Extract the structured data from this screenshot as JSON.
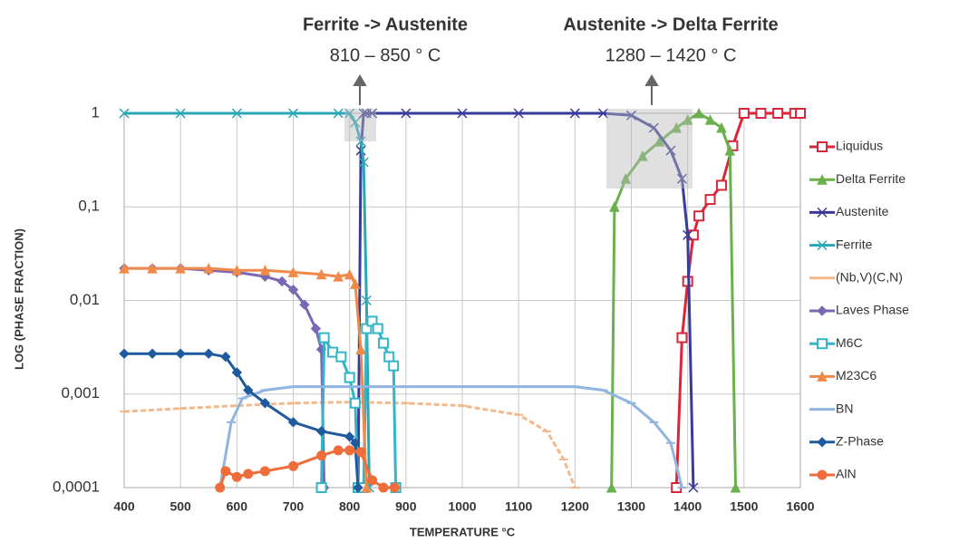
{
  "chart_data": {
    "type": "line",
    "annotations": [
      "Ferrite -> Austenite",
      "810 – 850 ° C",
      "Austenite -> Delta Ferrite",
      "1280 – 1420 ° C"
    ],
    "x_label": "TEMPERATURE °C",
    "y_label": "LOG (PHASE FRACTION)",
    "xlim": [
      400,
      1600
    ],
    "xticks": [
      400,
      500,
      600,
      700,
      800,
      900,
      1000,
      1100,
      1200,
      1300,
      1400,
      1500,
      1600
    ],
    "ylim": [
      0.0001,
      1
    ],
    "log_y": true,
    "yticks": [
      1,
      {
        "value": 0.1,
        "label": "0,1"
      },
      {
        "value": 0.01,
        "label": "0,01"
      },
      {
        "value": 0.001,
        "label": "0,001"
      },
      {
        "value": 0.0001,
        "label": "0,0001"
      }
    ],
    "grid": true,
    "legend": "right",
    "series": [
      {
        "name": "Liquidus",
        "color": "#d9263a",
        "marker": "square",
        "x": [
          1380,
          1390,
          1400,
          1410,
          1420,
          1440,
          1460,
          1480,
          1500,
          1530,
          1560,
          1590,
          1600
        ],
        "values": [
          0.0001,
          0.004,
          0.016,
          0.05,
          0.08,
          0.12,
          0.17,
          0.45,
          1,
          1,
          1,
          1,
          1
        ]
      },
      {
        "name": "Delta Ferrite",
        "color": "#6ab04c",
        "marker": "triangle",
        "x": [
          1265,
          1270,
          1290,
          1320,
          1350,
          1380,
          1400,
          1420,
          1440,
          1460,
          1475,
          1485
        ],
        "values": [
          0.0001,
          0.1,
          0.2,
          0.35,
          0.5,
          0.7,
          0.85,
          1,
          0.85,
          0.7,
          0.4,
          0.0001
        ]
      },
      {
        "name": "Austenite",
        "color": "#3a3a9a",
        "marker": "cross",
        "x": [
          815,
          820,
          825,
          830,
          840,
          900,
          1000,
          1100,
          1200,
          1250,
          1300,
          1340,
          1370,
          1390,
          1400,
          1410
        ],
        "values": [
          0.0001,
          0.4,
          1,
          1,
          1,
          1,
          1,
          1,
          1,
          1,
          0.95,
          0.7,
          0.4,
          0.2,
          0.05,
          0.0001
        ]
      },
      {
        "name": "Ferrite",
        "color": "#2aa7b5",
        "marker": "cross",
        "x": [
          400,
          500,
          600,
          700,
          780,
          800,
          810,
          820,
          825,
          830,
          835
        ],
        "values": [
          1,
          1,
          1,
          1,
          1,
          1,
          0.8,
          0.5,
          0.3,
          0.01,
          0.0001
        ]
      },
      {
        "name": "(Nb,V)(C,N)",
        "color": "#f4b98a",
        "marker": "dash",
        "x": [
          400,
          500,
          600,
          700,
          800,
          900,
          1000,
          1100,
          1150,
          1180,
          1200
        ],
        "values": [
          0.00065,
          0.0007,
          0.00075,
          0.0008,
          0.00082,
          0.0008,
          0.00075,
          0.0006,
          0.0004,
          0.0002,
          0.0001
        ]
      },
      {
        "name": "Laves Phase",
        "color": "#7b68b4",
        "marker": "diamond",
        "x": [
          400,
          450,
          500,
          550,
          600,
          650,
          680,
          700,
          720,
          740,
          750,
          755
        ],
        "values": [
          0.022,
          0.022,
          0.022,
          0.021,
          0.02,
          0.018,
          0.016,
          0.013,
          0.009,
          0.005,
          0.003,
          0.0001
        ]
      },
      {
        "name": "M6C",
        "color": "#33b5c9",
        "marker": "square",
        "x": [
          750,
          755,
          770,
          785,
          800,
          810,
          815,
          825,
          830,
          840,
          850,
          860,
          870,
          878,
          882
        ],
        "values": [
          0.0001,
          0.004,
          0.0028,
          0.0025,
          0.0015,
          0.0008,
          0.0001,
          0.0001,
          0.005,
          0.006,
          0.005,
          0.0035,
          0.0025,
          0.002,
          0.0001
        ]
      },
      {
        "name": "M23C6",
        "color": "#f08a4b",
        "marker": "triangle",
        "x": [
          400,
          450,
          500,
          550,
          600,
          650,
          700,
          750,
          780,
          800,
          810,
          820,
          830
        ],
        "values": [
          0.022,
          0.022,
          0.022,
          0.022,
          0.021,
          0.021,
          0.02,
          0.019,
          0.018,
          0.019,
          0.015,
          0.003,
          0.0001
        ]
      },
      {
        "name": "BN",
        "color": "#8fb5e0",
        "marker": "dash",
        "x": [
          570,
          590,
          610,
          650,
          700,
          800,
          900,
          1000,
          1100,
          1200,
          1250,
          1300,
          1340,
          1370,
          1390
        ],
        "values": [
          0.0001,
          0.0005,
          0.0009,
          0.0011,
          0.0012,
          0.0012,
          0.0012,
          0.0012,
          0.0012,
          0.0012,
          0.0011,
          0.0008,
          0.0005,
          0.0003,
          0.0001
        ]
      },
      {
        "name": "Z-Phase",
        "color": "#1f5a9e",
        "marker": "diamond",
        "x": [
          400,
          450,
          500,
          550,
          580,
          600,
          620,
          650,
          700,
          750,
          800,
          810,
          815
        ],
        "values": [
          0.0027,
          0.0027,
          0.0027,
          0.0027,
          0.0025,
          0.0017,
          0.0011,
          0.0008,
          0.0005,
          0.0004,
          0.00035,
          0.0003,
          0.0001
        ]
      },
      {
        "name": "AlN",
        "color": "#ee6d3a",
        "marker": "circle",
        "x": [
          570,
          580,
          600,
          620,
          650,
          700,
          750,
          780,
          800,
          820,
          840,
          860,
          880
        ],
        "values": [
          0.0001,
          0.00015,
          0.00013,
          0.00014,
          0.00015,
          0.00017,
          0.00022,
          0.00025,
          0.00025,
          0.00024,
          0.00012,
          0.0001,
          0.0001
        ]
      }
    ]
  }
}
